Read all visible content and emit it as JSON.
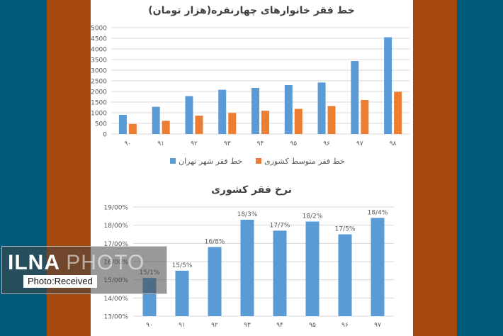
{
  "colors": {
    "band_left_outer": "#005a7a",
    "band_left_inner": "#a5490f",
    "band_right_inner": "#a5490f",
    "band_right_outer": "#005a7a",
    "series_blue": "#5b9bd5",
    "series_orange": "#ed7d31",
    "axis_text": "#595959",
    "grid": "#d9d9d9"
  },
  "watermark": {
    "logo_main": "ILNA",
    "logo_secondary": "PHOTO",
    "caption": "Photo:Received"
  },
  "chart_data": [
    {
      "type": "bar",
      "title": "خط فقر خانوارهای چهارنفره(هزار تومان)",
      "categories": [
        "۹۰",
        "۹۱",
        "۹۲",
        "۹۳",
        "۹۴",
        "۹۵",
        "۹۶",
        "۹۷",
        "۹۸"
      ],
      "series": [
        {
          "name": "خط فقر شهر تهران",
          "color": "#5b9bd5",
          "values": [
            900,
            1280,
            1780,
            2080,
            2170,
            2300,
            2420,
            3430,
            4550
          ]
        },
        {
          "name": "خط فقر متوسط کشوری",
          "color": "#ed7d31",
          "values": [
            470,
            620,
            860,
            990,
            1090,
            1180,
            1310,
            1600,
            1980
          ]
        }
      ],
      "yticks": [
        "0",
        "500",
        "1000",
        "1500",
        "2000",
        "2500",
        "3000",
        "3500",
        "4000",
        "4500",
        "5000"
      ],
      "ylim": [
        0,
        5000
      ],
      "grid": true,
      "legend_position": "bottom"
    },
    {
      "type": "bar",
      "title": "نرخ فقر کشوری",
      "categories": [
        "۹۰",
        "۹۱",
        "۹۲",
        "۹۳",
        "۹۴",
        "۹۵",
        "۹۶",
        "۹۷"
      ],
      "series": [
        {
          "color": "#5b9bd5",
          "values": [
            15.1,
            15.5,
            16.8,
            18.3,
            17.7,
            18.2,
            17.5,
            18.4
          ]
        }
      ],
      "data_labels": [
        "15/1%",
        "15/5%",
        "16/8%",
        "18/3%",
        "17/7%",
        "18/2%",
        "17/5%",
        "18/4%"
      ],
      "yticks": [
        "13/00%",
        "14/00%",
        "15/00%",
        "16/00%",
        "17/00%",
        "18/00%",
        "19/00%"
      ],
      "ylim": [
        13,
        19
      ],
      "grid": true
    }
  ]
}
